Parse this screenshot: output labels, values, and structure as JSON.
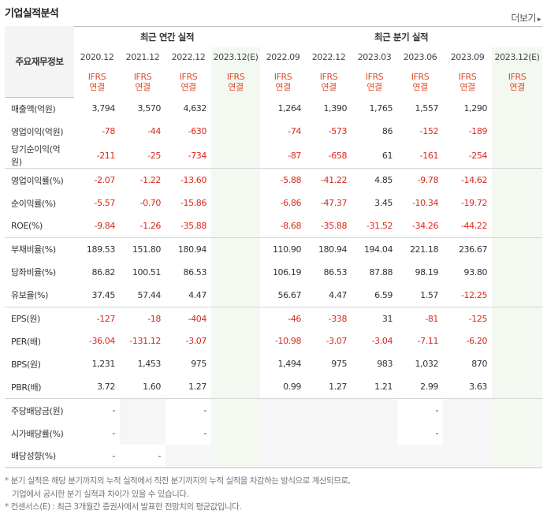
{
  "title": "기업실적분석",
  "more_label": "더보기",
  "more_arrow": "▸",
  "row_header": "주요재무정보",
  "groups": {
    "annual": "최근 연간 실적",
    "quarterly": "최근 분기 실적"
  },
  "annual_periods": [
    "2020.12",
    "2021.12",
    "2022.12",
    "2023.12(E)"
  ],
  "quarter_periods": [
    "2022.09",
    "2022.12",
    "2023.03",
    "2023.06",
    "2023.09",
    "2023.12(E)"
  ],
  "basis_top": "IFRS",
  "basis_bottom": "연결",
  "rows": [
    {
      "label": "매출액(억원)",
      "annual": [
        "3,794",
        "3,570",
        "4,632",
        ""
      ],
      "quarter": [
        "1,264",
        "1,390",
        "1,765",
        "1,557",
        "1,290",
        ""
      ]
    },
    {
      "label": "영업이익(억원)",
      "annual": [
        "-78",
        "-44",
        "-630",
        ""
      ],
      "quarter": [
        "-74",
        "-573",
        "86",
        "-152",
        "-189",
        ""
      ]
    },
    {
      "label": "당기순이익(억원)",
      "annual": [
        "-211",
        "-25",
        "-734",
        ""
      ],
      "quarter": [
        "-87",
        "-658",
        "61",
        "-161",
        "-254",
        ""
      ]
    },
    {
      "label": "영업이익률(%)",
      "annual": [
        "-2.07",
        "-1.22",
        "-13.60",
        ""
      ],
      "quarter": [
        "-5.88",
        "-41.22",
        "4.85",
        "-9.78",
        "-14.62",
        ""
      ]
    },
    {
      "label": "순이익률(%)",
      "annual": [
        "-5.57",
        "-0.70",
        "-15.86",
        ""
      ],
      "quarter": [
        "-6.86",
        "-47.37",
        "3.45",
        "-10.34",
        "-19.72",
        ""
      ]
    },
    {
      "label": "ROE(%)",
      "annual": [
        "-9.84",
        "-1.26",
        "-35.88",
        ""
      ],
      "quarter": [
        "-8.68",
        "-35.88",
        "-31.52",
        "-34.26",
        "-44.22",
        ""
      ]
    },
    {
      "label": "부채비율(%)",
      "annual": [
        "189.53",
        "151.80",
        "180.94",
        ""
      ],
      "quarter": [
        "110.90",
        "180.94",
        "194.04",
        "221.18",
        "236.67",
        ""
      ]
    },
    {
      "label": "당좌비율(%)",
      "annual": [
        "86.82",
        "100.51",
        "86.53",
        ""
      ],
      "quarter": [
        "106.19",
        "86.53",
        "87.88",
        "98.19",
        "93.80",
        ""
      ]
    },
    {
      "label": "유보율(%)",
      "annual": [
        "37.45",
        "57.44",
        "4.47",
        ""
      ],
      "quarter": [
        "56.67",
        "4.47",
        "6.59",
        "1.57",
        "-12.25",
        ""
      ]
    },
    {
      "label": "EPS(원)",
      "annual": [
        "-127",
        "-18",
        "-404",
        ""
      ],
      "quarter": [
        "-46",
        "-338",
        "31",
        "-81",
        "-125",
        ""
      ]
    },
    {
      "label": "PER(배)",
      "annual": [
        "-36.04",
        "-131.12",
        "-3.07",
        ""
      ],
      "quarter": [
        "-10.98",
        "-3.07",
        "-3.04",
        "-7.11",
        "-6.20",
        ""
      ]
    },
    {
      "label": "BPS(원)",
      "annual": [
        "1,231",
        "1,453",
        "975",
        ""
      ],
      "quarter": [
        "1,494",
        "975",
        "983",
        "1,032",
        "870",
        ""
      ]
    },
    {
      "label": "PBR(배)",
      "annual": [
        "3.72",
        "1.60",
        "1.27",
        ""
      ],
      "quarter": [
        "0.99",
        "1.27",
        "1.21",
        "2.99",
        "3.63",
        ""
      ]
    },
    {
      "label": "주당배당금(원)",
      "annual": [
        "-",
        "",
        "-",
        ""
      ],
      "quarter": [
        "",
        "",
        "",
        "-",
        "",
        ""
      ]
    },
    {
      "label": "시가배당률(%)",
      "annual": [
        "-",
        "",
        "-",
        ""
      ],
      "quarter": [
        "",
        "",
        "",
        "-",
        "",
        ""
      ]
    },
    {
      "label": "배당성향(%)",
      "annual": [
        "-",
        "-",
        "",
        ""
      ],
      "quarter": [
        "",
        "",
        "",
        "",
        "",
        ""
      ]
    }
  ],
  "notes": [
    "* 분기 실적은 해당 분기까지의 누적 실적에서 직전 분기까지의 누적 실적을 차감하는 방식으로 계산되므로,",
    "기업에서 공시한 분기 실적과 차이가 있을 수 있습니다.",
    "* 컨센서스(E) : 최근 3개월간 증권사에서 발표한 전망치의 평균값입니다."
  ],
  "colors": {
    "negative": "#d9281d",
    "ifrs": "#e24b2b",
    "estimate_bg": "#f3f9f1",
    "empty_bg": "#f6f6f6"
  }
}
